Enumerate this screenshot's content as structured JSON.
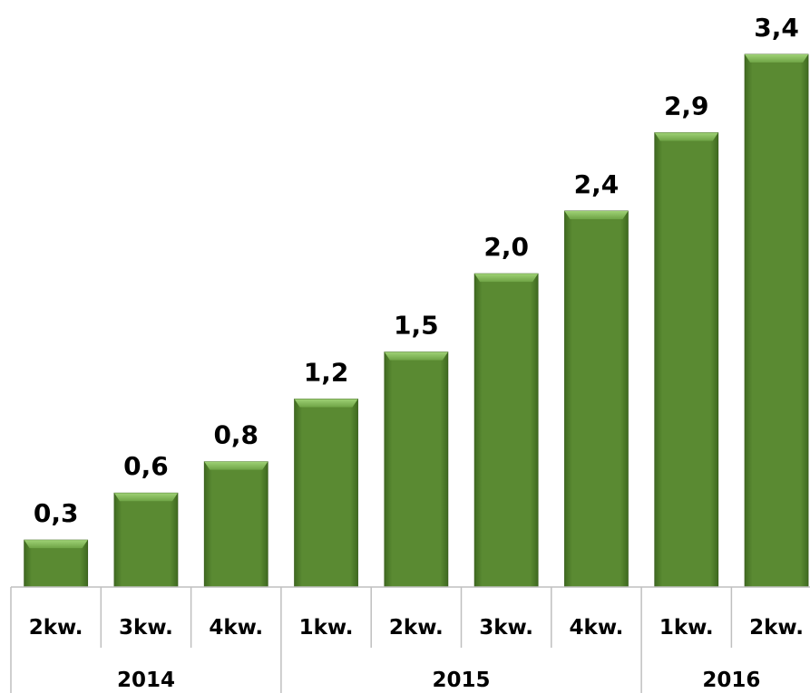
{
  "chart_data": {
    "type": "bar",
    "categories": [
      "2kw.",
      "3kw.",
      "4kw.",
      "1kw.",
      "2kw.",
      "3kw.",
      "4kw.",
      "1kw.",
      "2kw."
    ],
    "values": [
      0.3,
      0.6,
      0.8,
      1.2,
      1.5,
      2.0,
      2.4,
      2.9,
      3.4
    ],
    "value_labels": [
      "0,3",
      "0,6",
      "0,8",
      "1,2",
      "1,5",
      "2,0",
      "2,4",
      "2,9",
      "3,4"
    ],
    "groups": [
      {
        "label": "2014",
        "span": 3
      },
      {
        "label": "2015",
        "span": 4
      },
      {
        "label": "2016",
        "span": 2
      }
    ],
    "title": "",
    "xlabel": "",
    "ylabel": "",
    "ylim": [
      0,
      3.5
    ],
    "grid": false,
    "legend": "none",
    "bar_color": "#5a8a32",
    "bar_highlight_color": "#8cc063",
    "bar_shadow_color": "#3f6a20"
  }
}
